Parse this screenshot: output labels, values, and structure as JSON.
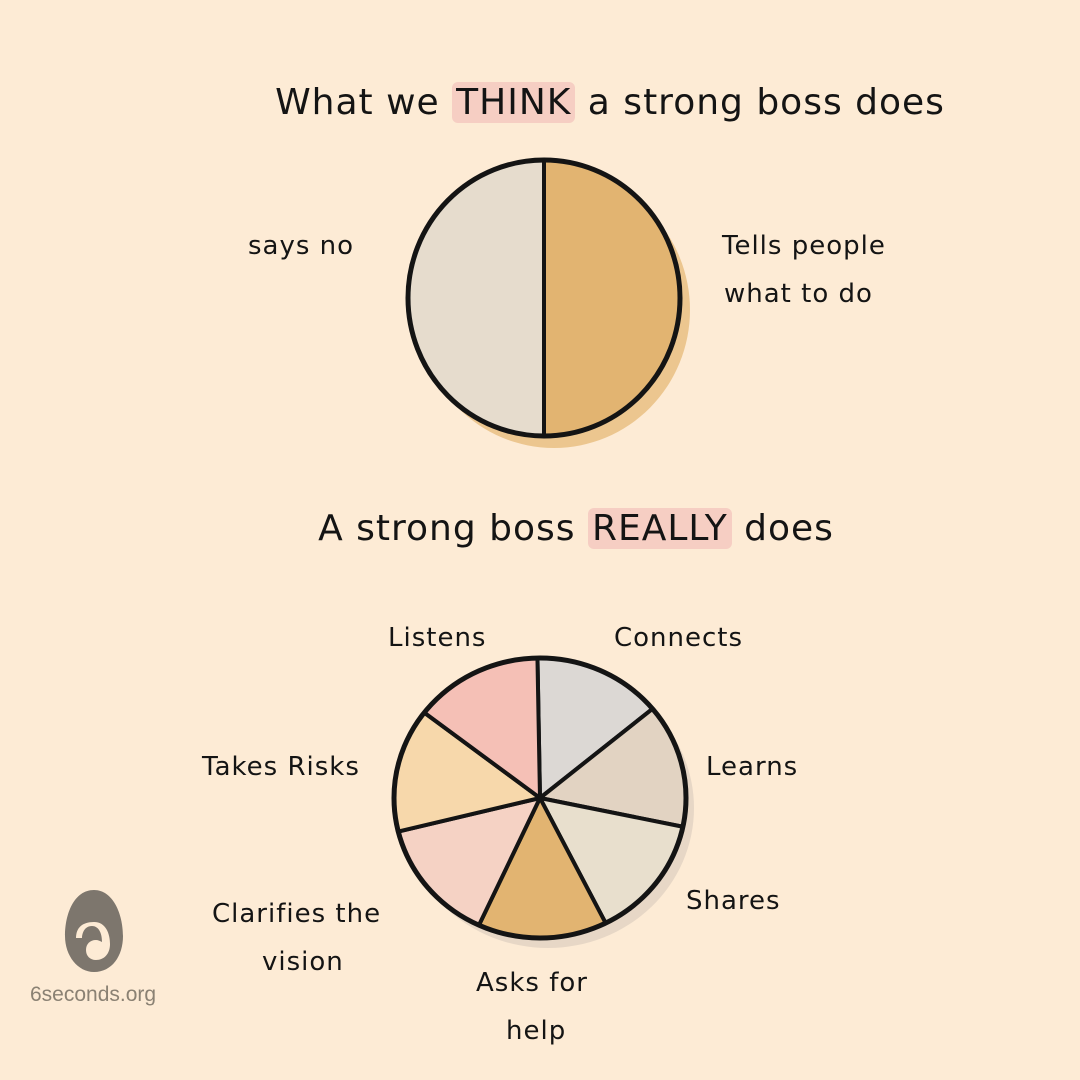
{
  "chart_data": [
    {
      "type": "pie",
      "title_parts": [
        "What we ",
        "THINK",
        " a strong boss does"
      ],
      "slices": [
        {
          "label": "says no",
          "value": 50,
          "color": "#e6dccd"
        },
        {
          "label": "Tells people what to do",
          "value": 50,
          "color": "#e2b471"
        }
      ]
    },
    {
      "type": "pie",
      "title_parts": [
        "A strong boss ",
        "REALLY",
        " does"
      ],
      "slices": [
        {
          "label": "Listens",
          "value": 1,
          "color": "#dcd8d4"
        },
        {
          "label": "Connects",
          "value": 1,
          "color": "#e2d3c2"
        },
        {
          "label": "Learns",
          "value": 1,
          "color": "#e8dfcd"
        },
        {
          "label": "Shares",
          "value": 1,
          "color": "#e2b471"
        },
        {
          "label": "Asks for help",
          "value": 1,
          "color": "#f5d2c4"
        },
        {
          "label": "Clarifies the vision",
          "value": 1,
          "color": "#f7d8ab"
        },
        {
          "label": "Takes Risks",
          "value": 1,
          "color": "#f5c0b6"
        }
      ]
    }
  ],
  "labels": {
    "says_no": "says no",
    "tells_1": "Tells people",
    "tells_2": "what to do",
    "listens": "Listens",
    "connects": "Connects",
    "learns": "Learns",
    "shares": "Shares",
    "asks_1": "Asks for",
    "asks_2": "help",
    "clarifies_1": "Clarifies the",
    "clarifies_2": "vision",
    "takes": "Takes Risks"
  },
  "footer": {
    "site": "6seconds.org",
    "logo_color": "#7d766d"
  }
}
